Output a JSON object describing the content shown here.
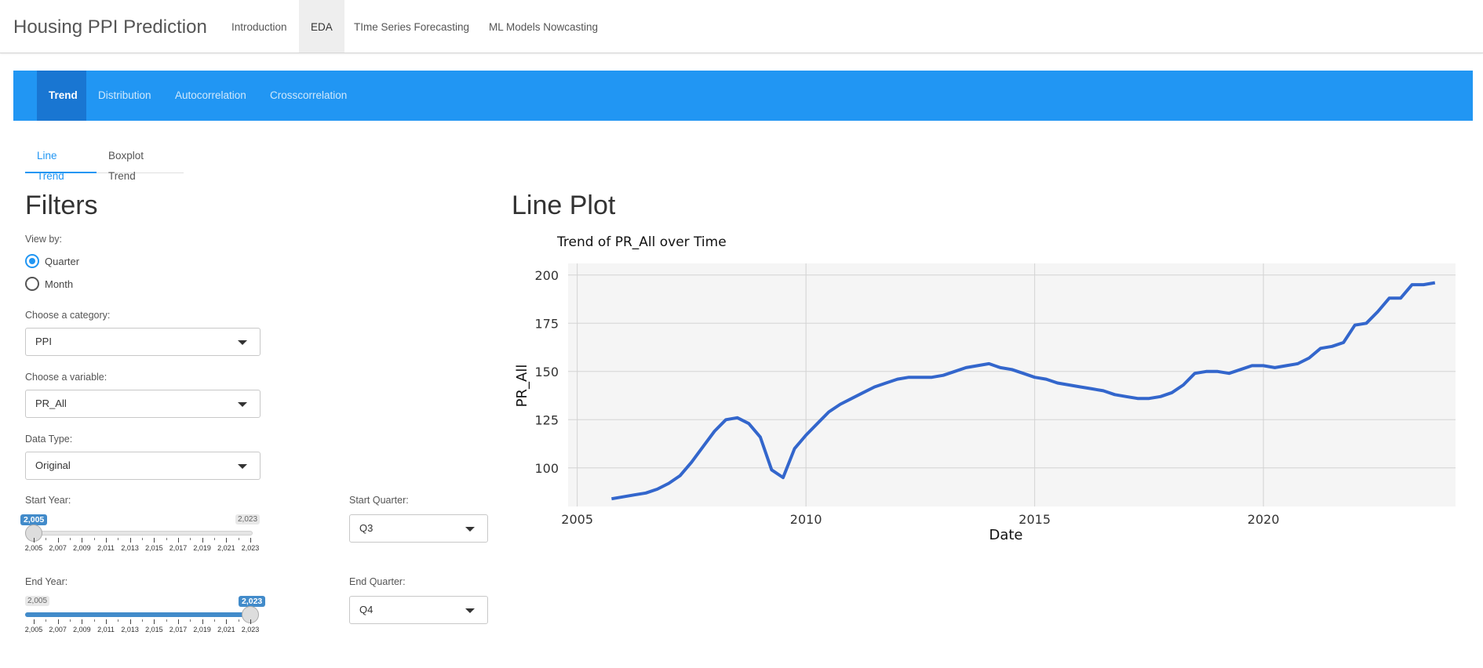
{
  "app": {
    "title": "Housing PPI Prediction"
  },
  "nav": [
    {
      "label": "Introduction"
    },
    {
      "label": "EDA"
    },
    {
      "label": "TIme Series Forecasting"
    },
    {
      "label": "ML Models Nowcasting"
    }
  ],
  "eda_tabs": [
    {
      "label": "Trend"
    },
    {
      "label": "Distribution"
    },
    {
      "label": "Autocorrelation"
    },
    {
      "label": "Crosscorrelation"
    }
  ],
  "sub_tabs": [
    {
      "label": "Line Trend"
    },
    {
      "label": "Boxplot Trend"
    }
  ],
  "filters": {
    "heading": "Filters",
    "view_by": {
      "label": "View by:",
      "options": [
        "Quarter",
        "Month"
      ],
      "selected": "Quarter"
    },
    "category": {
      "label": "Choose a category:",
      "value": "PPI"
    },
    "variable": {
      "label": "Choose a variable:",
      "value": "PR_All"
    },
    "data_type": {
      "label": "Data Type:",
      "value": "Original"
    },
    "start_year": {
      "label": "Start Year:",
      "min": "2,005",
      "max": "2,023",
      "value": "2,005"
    },
    "end_year": {
      "label": "End Year:",
      "min": "2,005",
      "max": "2,023",
      "value": "2,023"
    },
    "start_quarter": {
      "label": "Start Quarter:",
      "value": "Q3"
    },
    "end_quarter": {
      "label": "End Quarter:",
      "value": "Q4"
    },
    "year_ticks": [
      "2,005",
      "2,007",
      "2,009",
      "2,011",
      "2,013",
      "2,015",
      "2,017",
      "2,019",
      "2,021",
      "2,023"
    ]
  },
  "plot": {
    "heading": "Line Plot"
  },
  "colors": {
    "accent": "#2196f3",
    "line": "#3366cc"
  },
  "chart_data": {
    "type": "line",
    "title": "Trend of PR_All over Time",
    "xlabel": "Date",
    "ylabel": "PR_All",
    "xlim": [
      2004.8,
      2024.2
    ],
    "ylim": [
      80,
      206
    ],
    "xticks": [
      2005,
      2010,
      2015,
      2020
    ],
    "yticks": [
      100,
      125,
      150,
      175,
      200
    ],
    "grid": true,
    "x": [
      2005.75,
      2006.0,
      2006.25,
      2006.5,
      2006.75,
      2007.0,
      2007.25,
      2007.5,
      2007.75,
      2008.0,
      2008.25,
      2008.5,
      2008.75,
      2009.0,
      2009.25,
      2009.5,
      2009.75,
      2010.0,
      2010.25,
      2010.5,
      2010.75,
      2011.0,
      2011.25,
      2011.5,
      2011.75,
      2012.0,
      2012.25,
      2012.5,
      2012.75,
      2013.0,
      2013.25,
      2013.5,
      2013.75,
      2014.0,
      2014.25,
      2014.5,
      2014.75,
      2015.0,
      2015.25,
      2015.5,
      2015.75,
      2016.0,
      2016.25,
      2016.5,
      2016.75,
      2017.0,
      2017.25,
      2017.5,
      2017.75,
      2018.0,
      2018.25,
      2018.5,
      2018.75,
      2019.0,
      2019.25,
      2019.5,
      2019.75,
      2020.0,
      2020.25,
      2020.5,
      2020.75,
      2021.0,
      2021.25,
      2021.5,
      2021.75,
      2022.0,
      2022.25,
      2022.5,
      2022.75,
      2023.0,
      2023.25,
      2023.5,
      2023.75
    ],
    "series": [
      {
        "values": [
          84,
          85,
          86,
          87,
          89,
          92,
          96,
          103,
          111,
          119,
          125,
          126,
          123,
          116,
          99,
          95,
          110,
          117,
          123,
          129,
          133,
          136,
          139,
          142,
          144,
          146,
          147,
          147,
          147,
          148,
          150,
          152,
          153,
          154,
          152,
          151,
          149,
          147,
          146,
          144,
          143,
          142,
          141,
          140,
          138,
          137,
          136,
          136,
          137,
          139,
          143,
          149,
          150,
          150,
          149,
          151,
          153,
          153,
          152,
          153,
          154,
          157,
          162,
          163,
          165,
          174,
          175,
          181,
          188,
          188,
          195,
          195,
          196
        ]
      }
    ]
  }
}
